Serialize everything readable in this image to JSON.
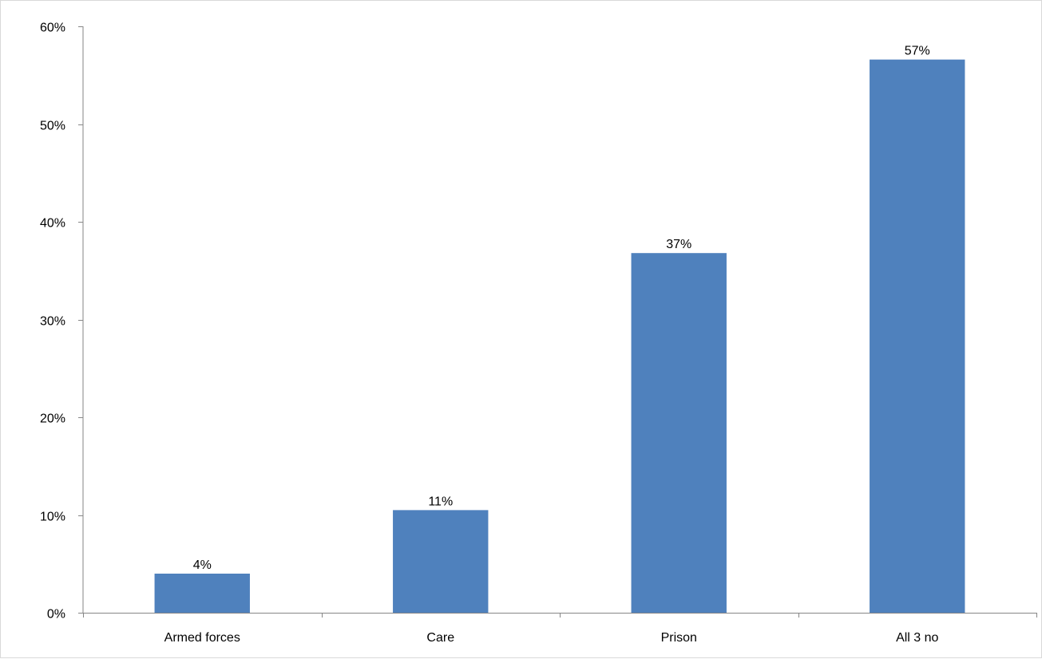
{
  "chart_data": {
    "type": "bar",
    "categories": [
      "Armed forces",
      "Care",
      "Prison",
      "All 3 no"
    ],
    "values": [
      4,
      10.5,
      36.8,
      56.6
    ],
    "data_labels": [
      "4%",
      "11%",
      "37%",
      "57%"
    ],
    "title": "",
    "xlabel": "",
    "ylabel": "",
    "ylim": [
      0,
      60
    ],
    "yticks": [
      0,
      10,
      20,
      30,
      40,
      50,
      60
    ],
    "ytick_labels": [
      "0%",
      "10%",
      "20%",
      "30%",
      "40%",
      "50%",
      "60%"
    ],
    "grid": false,
    "legend": "none",
    "colors": {
      "bar": "#4f81bd",
      "axis": "#868686"
    }
  }
}
